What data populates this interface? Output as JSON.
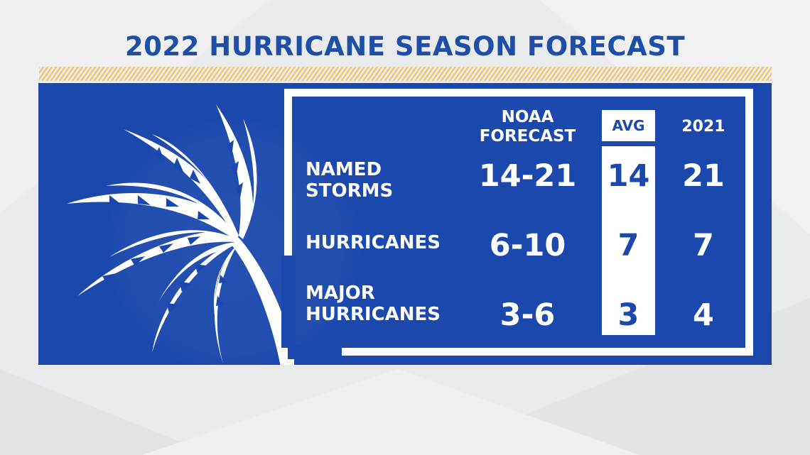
{
  "title": "2022 HURRICANE SEASON FORECAST",
  "columns": {
    "noaa": "NOAA\nFORECAST",
    "avg": "AVG",
    "prior_year": "2021"
  },
  "rows": [
    {
      "label": "NAMED\nSTORMS",
      "noaa": "14-21",
      "avg": "14",
      "prior_year": "21"
    },
    {
      "label": "HURRICANES",
      "noaa": "6-10",
      "avg": "7",
      "prior_year": "7"
    },
    {
      "label": "MAJOR\nHURRICANES",
      "noaa": "3-6",
      "avg": "3",
      "prior_year": "4"
    }
  ],
  "colors": {
    "title_blue": "#1d4fa8",
    "panel_blue": "#1a48ad",
    "accent_gold": "#f1c45c",
    "background": "#e9eaec",
    "white": "#ffffff"
  },
  "icons": [
    "palm-tree-icon"
  ]
}
